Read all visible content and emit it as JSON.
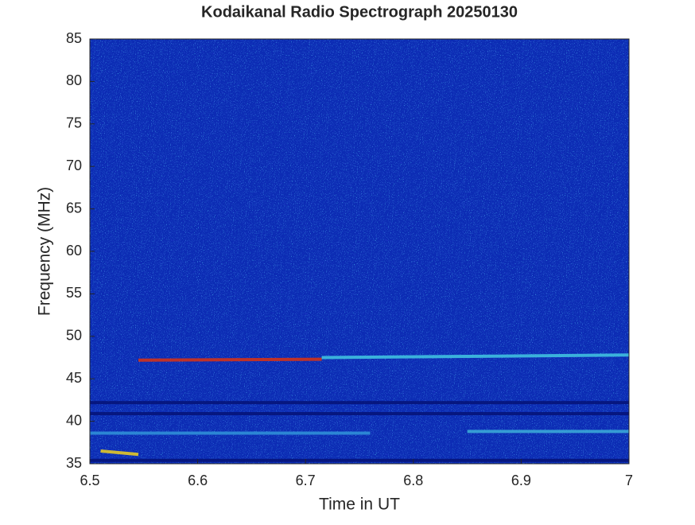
{
  "chart_data": {
    "type": "spectrogram",
    "title": "Kodaikanal Radio Spectrograph  20250130",
    "xlabel": "Time in UT",
    "ylabel": "Frequency (MHz)",
    "xlim": [
      6.5,
      7
    ],
    "xticks": [
      6.5,
      6.6,
      6.7,
      6.8,
      6.9,
      7
    ],
    "ylim": [
      35,
      85
    ],
    "yticks": [
      35,
      40,
      45,
      50,
      55,
      60,
      65,
      70,
      75,
      80,
      85
    ],
    "background": "#0c2cb4",
    "bands": [
      {
        "x": [
          6.5,
          7
        ],
        "y": [
          42.2,
          42.2
        ],
        "color": "#06147a"
      },
      {
        "x": [
          6.5,
          7
        ],
        "y": [
          40.9,
          40.9
        ],
        "color": "#06147a"
      },
      {
        "x": [
          6.5,
          7
        ],
        "y": [
          35.4,
          35.4
        ],
        "color": "#06147a"
      },
      {
        "x": [
          6.5,
          6.76
        ],
        "y": [
          38.6,
          38.6
        ],
        "color": "#2f8fd8"
      },
      {
        "x": [
          6.85,
          7
        ],
        "y": [
          38.8,
          38.8
        ],
        "color": "#3aa8d8"
      },
      {
        "x": [
          6.545,
          6.715
        ],
        "y": [
          47.2,
          47.3
        ],
        "color": "#d2321a"
      },
      {
        "x": [
          6.715,
          7
        ],
        "y": [
          47.5,
          47.8
        ],
        "color": "#3fc0e0"
      },
      {
        "x": [
          6.51,
          6.545
        ],
        "y": [
          36.5,
          36.1
        ],
        "color": "#e2c828"
      }
    ]
  }
}
